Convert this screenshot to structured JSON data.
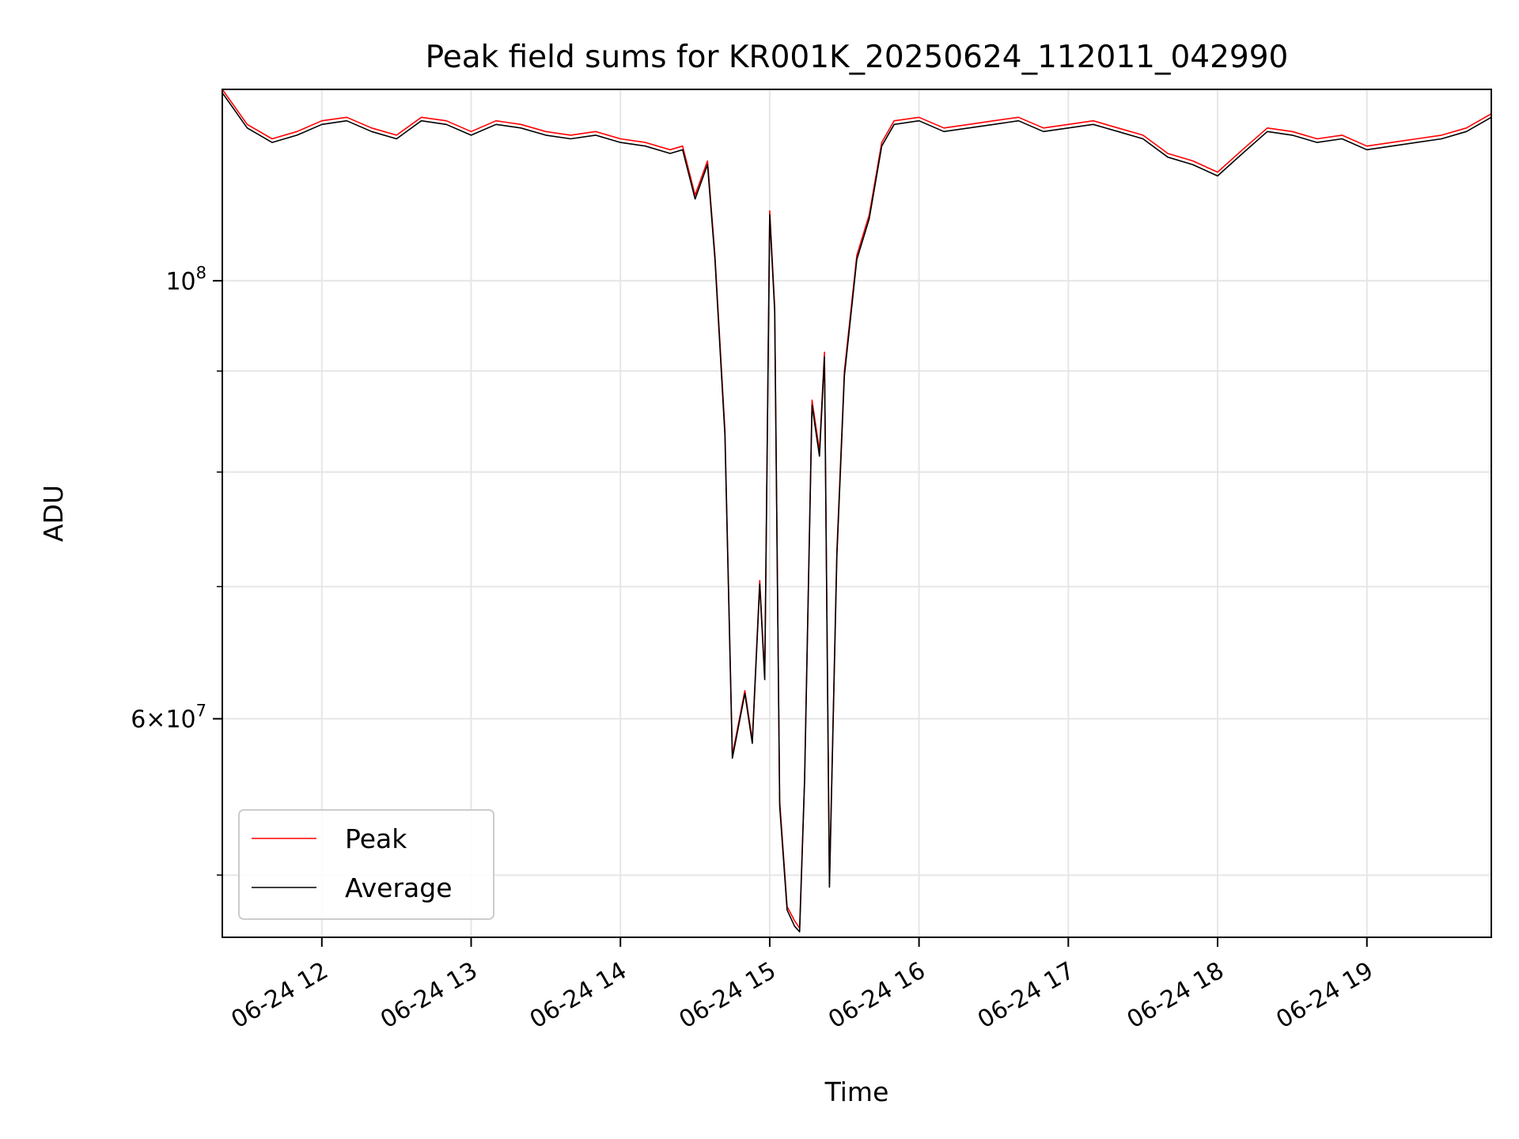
{
  "chart_data": {
    "type": "line",
    "title": "Peak field sums for KR001K_20250624_112011_042990",
    "xlabel": "Time",
    "ylabel": "ADU",
    "x_range": [
      "06-24 11:20",
      "06-24 19:50"
    ],
    "x_ticks": [
      "06-24 12",
      "06-24 13",
      "06-24 14",
      "06-24 15",
      "06-24 16",
      "06-24 17",
      "06-24 18",
      "06-24 19"
    ],
    "yscale": "log",
    "ylim": [
      46500000,
      125000000
    ],
    "y_major_ticks": [
      {
        "value": 100000000,
        "base": "10",
        "exp": "8"
      },
      {
        "value": 60000000,
        "mantissa": "6",
        "base": "10",
        "exp": "7"
      }
    ],
    "y_minor_ticks": [
      50000000,
      70000000,
      80000000,
      90000000
    ],
    "grid": true,
    "legend_position": "lower-left",
    "series": [
      {
        "name": "Peak",
        "color": "#ff0000",
        "x": [
          "06-24 11:20",
          "06-24 11:30",
          "06-24 11:40",
          "06-24 11:50",
          "06-24 12:00",
          "06-24 12:10",
          "06-24 12:20",
          "06-24 12:30",
          "06-24 12:40",
          "06-24 12:50",
          "06-24 13:00",
          "06-24 13:10",
          "06-24 13:20",
          "06-24 13:30",
          "06-24 13:40",
          "06-24 13:50",
          "06-24 14:00",
          "06-24 14:10",
          "06-24 14:20",
          "06-24 14:25",
          "06-24 14:30",
          "06-24 14:35",
          "06-24 14:38",
          "06-24 14:42",
          "06-24 14:45",
          "06-24 14:50",
          "06-24 14:53",
          "06-24 14:56",
          "06-24 14:58",
          "06-24 15:00",
          "06-24 15:02",
          "06-24 15:04",
          "06-24 15:07",
          "06-24 15:10",
          "06-24 15:12",
          "06-24 15:14",
          "06-24 15:17",
          "06-24 15:20",
          "06-24 15:22",
          "06-24 15:24",
          "06-24 15:27",
          "06-24 15:30",
          "06-24 15:35",
          "06-24 15:40",
          "06-24 15:45",
          "06-24 15:50",
          "06-24 16:00",
          "06-24 16:10",
          "06-24 16:20",
          "06-24 16:30",
          "06-24 16:40",
          "06-24 16:50",
          "06-24 17:00",
          "06-24 17:10",
          "06-24 17:20",
          "06-24 17:30",
          "06-24 17:40",
          "06-24 17:50",
          "06-24 18:00",
          "06-24 18:10",
          "06-24 18:20",
          "06-24 18:30",
          "06-24 18:40",
          "06-24 18:50",
          "06-24 19:00",
          "06-24 19:10",
          "06-24 19:20",
          "06-24 19:30",
          "06-24 19:40",
          "06-24 19:50"
        ],
        "y": [
          125000000,
          120000000,
          118000000,
          119000000,
          120500000,
          121000000,
          119500000,
          118500000,
          121000000,
          120500000,
          119000000,
          120500000,
          120000000,
          119000000,
          118500000,
          119000000,
          118000000,
          117500000,
          116500000,
          117000000,
          110500000,
          115000000,
          103000000,
          84000000,
          57500000,
          62000000,
          58500000,
          70500000,
          63000000,
          108500000,
          97000000,
          54500000,
          48200000,
          47400000,
          47000000,
          56000000,
          87000000,
          82000000,
          92000000,
          49500000,
          73000000,
          90000000,
          103000000,
          108000000,
          117500000,
          120500000,
          121000000,
          119500000,
          120000000,
          120500000,
          121000000,
          119500000,
          120000000,
          120500000,
          119500000,
          118500000,
          116000000,
          115000000,
          113500000,
          116500000,
          119500000,
          119000000,
          118000000,
          118500000,
          117000000,
          117500000,
          118000000,
          118500000,
          119500000,
          121500000
        ]
      },
      {
        "name": "Average",
        "color": "#000000",
        "x": [
          "06-24 11:20",
          "06-24 11:30",
          "06-24 11:40",
          "06-24 11:50",
          "06-24 12:00",
          "06-24 12:10",
          "06-24 12:20",
          "06-24 12:30",
          "06-24 12:40",
          "06-24 12:50",
          "06-24 13:00",
          "06-24 13:10",
          "06-24 13:20",
          "06-24 13:30",
          "06-24 13:40",
          "06-24 13:50",
          "06-24 14:00",
          "06-24 14:10",
          "06-24 14:20",
          "06-24 14:25",
          "06-24 14:30",
          "06-24 14:35",
          "06-24 14:38",
          "06-24 14:42",
          "06-24 14:45",
          "06-24 14:50",
          "06-24 14:53",
          "06-24 14:56",
          "06-24 14:58",
          "06-24 15:00",
          "06-24 15:02",
          "06-24 15:04",
          "06-24 15:07",
          "06-24 15:10",
          "06-24 15:12",
          "06-24 15:14",
          "06-24 15:17",
          "06-24 15:20",
          "06-24 15:22",
          "06-24 15:24",
          "06-24 15:27",
          "06-24 15:30",
          "06-24 15:35",
          "06-24 15:40",
          "06-24 15:45",
          "06-24 15:50",
          "06-24 16:00",
          "06-24 16:10",
          "06-24 16:20",
          "06-24 16:30",
          "06-24 16:40",
          "06-24 16:50",
          "06-24 17:00",
          "06-24 17:10",
          "06-24 17:20",
          "06-24 17:30",
          "06-24 17:40",
          "06-24 17:50",
          "06-24 18:00",
          "06-24 18:10",
          "06-24 18:20",
          "06-24 18:30",
          "06-24 18:40",
          "06-24 18:50",
          "06-24 19:00",
          "06-24 19:10",
          "06-24 19:20",
          "06-24 19:30",
          "06-24 19:40",
          "06-24 19:50"
        ],
        "y": [
          124500000,
          119500000,
          117500000,
          118500000,
          120000000,
          120500000,
          119000000,
          118000000,
          120500000,
          120000000,
          118500000,
          120000000,
          119500000,
          118500000,
          118000000,
          118500000,
          117500000,
          117000000,
          116000000,
          116500000,
          110000000,
          114500000,
          102500000,
          83500000,
          57300000,
          61800000,
          58300000,
          70200000,
          62800000,
          108000000,
          96500000,
          54200000,
          48000000,
          47100000,
          46800000,
          55800000,
          86500000,
          81500000,
          91500000,
          49300000,
          72500000,
          89500000,
          102500000,
          107500000,
          117000000,
          120000000,
          120500000,
          119000000,
          119500000,
          120000000,
          120500000,
          119000000,
          119500000,
          120000000,
          119000000,
          118000000,
          115500000,
          114500000,
          113000000,
          116000000,
          119000000,
          118500000,
          117500000,
          118000000,
          116500000,
          117000000,
          117500000,
          118000000,
          119000000,
          121000000
        ]
      }
    ]
  }
}
